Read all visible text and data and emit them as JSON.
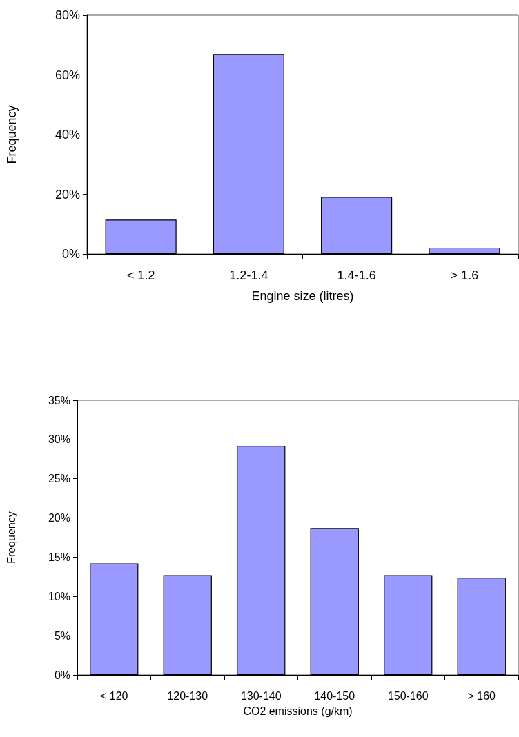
{
  "chart_data": [
    {
      "type": "bar",
      "xlabel": "Engine size (litres)",
      "ylabel": "Frequency",
      "categories": [
        "< 1.2",
        "1.2-1.4",
        "1.4-1.6",
        "> 1.6"
      ],
      "values": [
        11.5,
        67.0,
        19.1,
        2.1
      ],
      "color": "#9999ff",
      "ylim": [
        0,
        80
      ],
      "yticks": [
        {
          "value": 0,
          "label": "0%"
        },
        {
          "value": 20,
          "label": "20%"
        },
        {
          "value": 40,
          "label": "40%"
        },
        {
          "value": 60,
          "label": "60%"
        },
        {
          "value": 80,
          "label": "80%"
        }
      ],
      "grid": false
    },
    {
      "type": "bar",
      "xlabel": "CO2 emissions (g/km)",
      "ylabel": "Frequency",
      "categories": [
        "< 120",
        "120-130",
        "130-140",
        "140-150",
        "150-160",
        "> 160"
      ],
      "values": [
        14.2,
        12.7,
        29.2,
        18.7,
        12.7,
        12.4
      ],
      "color": "#9999ff",
      "ylim": [
        0,
        35
      ],
      "yticks": [
        {
          "value": 0,
          "label": "0%"
        },
        {
          "value": 5,
          "label": "5%"
        },
        {
          "value": 10,
          "label": "10%"
        },
        {
          "value": 15,
          "label": "15%"
        },
        {
          "value": 20,
          "label": "20%"
        },
        {
          "value": 25,
          "label": "25%"
        },
        {
          "value": 30,
          "label": "30%"
        },
        {
          "value": 35,
          "label": "35%"
        }
      ],
      "grid": false
    }
  ]
}
